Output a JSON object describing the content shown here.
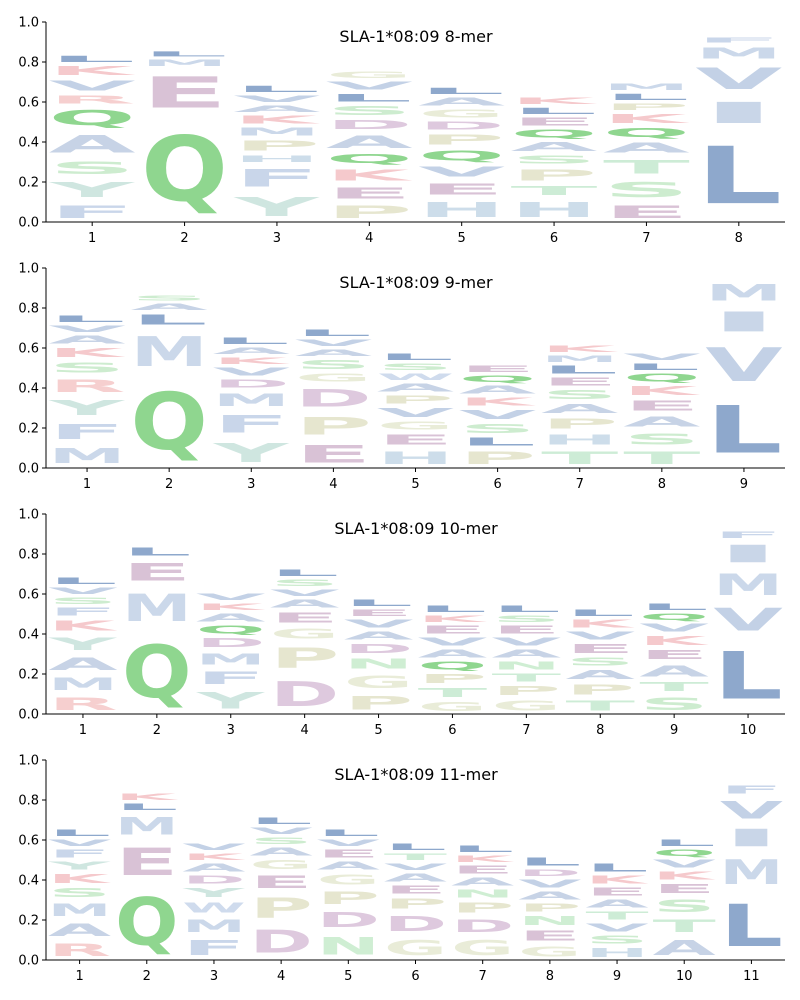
{
  "chart_data": [
    {
      "type": "sequence-logo",
      "title": "SLA-1*08:09 8-mer",
      "ylim": [
        0,
        1.0
      ],
      "yticks": [
        "0.0",
        "0.2",
        "0.4",
        "0.6",
        "0.8",
        "1.0"
      ],
      "positions": [
        "1",
        "2",
        "3",
        "4",
        "5",
        "6",
        "7",
        "8"
      ],
      "columns": [
        [
          [
            "F",
            0.1
          ],
          [
            "Y",
            0.12
          ],
          [
            "S",
            0.1
          ],
          [
            "A",
            0.14
          ],
          [
            "Q",
            0.12
          ],
          [
            "R",
            0.06
          ],
          [
            "V",
            0.08
          ],
          [
            "K",
            0.07
          ],
          [
            "L",
            0.05
          ]
        ],
        [
          [
            "Q",
            0.52
          ],
          [
            "E",
            0.25
          ],
          [
            "M",
            0.05
          ],
          [
            "L",
            0.04
          ]
        ],
        [
          [
            "Y",
            0.15
          ],
          [
            "F",
            0.14
          ],
          [
            "H",
            0.05
          ],
          [
            "P",
            0.08
          ],
          [
            "M",
            0.06
          ],
          [
            "K",
            0.06
          ],
          [
            "A",
            0.05
          ],
          [
            "V",
            0.05
          ],
          [
            "L",
            0.05
          ]
        ],
        [
          [
            "P",
            0.1
          ],
          [
            "E",
            0.09
          ],
          [
            "K",
            0.09
          ],
          [
            "Q",
            0.07
          ],
          [
            "A",
            0.1
          ],
          [
            "D",
            0.07
          ],
          [
            "S",
            0.07
          ],
          [
            "L",
            0.06
          ],
          [
            "V",
            0.06
          ],
          [
            "G",
            0.05
          ]
        ],
        [
          [
            "H",
            0.12
          ],
          [
            "E",
            0.09
          ],
          [
            "V",
            0.08
          ],
          [
            "Q",
            0.08
          ],
          [
            "P",
            0.08
          ],
          [
            "D",
            0.06
          ],
          [
            "G",
            0.06
          ],
          [
            "A",
            0.06
          ],
          [
            "L",
            0.05
          ]
        ],
        [
          [
            "H",
            0.12
          ],
          [
            "T",
            0.07
          ],
          [
            "P",
            0.09
          ],
          [
            "S",
            0.06
          ],
          [
            "A",
            0.07
          ],
          [
            "Q",
            0.06
          ],
          [
            "E",
            0.06
          ],
          [
            "L",
            0.05
          ],
          [
            "K",
            0.05
          ]
        ],
        [
          [
            "E",
            0.1
          ],
          [
            "S",
            0.12
          ],
          [
            "T",
            0.11
          ],
          [
            "A",
            0.08
          ],
          [
            "Q",
            0.07
          ],
          [
            "K",
            0.07
          ],
          [
            "P",
            0.05
          ],
          [
            "L",
            0.05
          ],
          [
            "M",
            0.05
          ]
        ],
        [
          [
            "L",
            0.46
          ],
          [
            "I",
            0.17
          ],
          [
            "V",
            0.17
          ],
          [
            "M",
            0.09
          ],
          [
            "F",
            0.04
          ]
        ]
      ]
    },
    {
      "type": "sequence-logo",
      "title": "SLA-1*08:09 9-mer",
      "ylim": [
        0,
        1.0
      ],
      "yticks": [
        "0.0",
        "0.2",
        "0.4",
        "0.6",
        "0.8",
        "1.0"
      ],
      "positions": [
        "1",
        "2",
        "3",
        "4",
        "5",
        "6",
        "7",
        "8",
        "9"
      ],
      "columns": [
        [
          [
            "M",
            0.12
          ],
          [
            "F",
            0.12
          ],
          [
            "Y",
            0.12
          ],
          [
            "R",
            0.1
          ],
          [
            "S",
            0.08
          ],
          [
            "K",
            0.07
          ],
          [
            "A",
            0.06
          ],
          [
            "V",
            0.05
          ],
          [
            "L",
            0.05
          ]
        ],
        [
          [
            "Q",
            0.46
          ],
          [
            "M",
            0.24
          ],
          [
            "L",
            0.08
          ],
          [
            "A",
            0.05
          ],
          [
            "S",
            0.04
          ]
        ],
        [
          [
            "Y",
            0.15
          ],
          [
            "F",
            0.14
          ],
          [
            "M",
            0.1
          ],
          [
            "D",
            0.06
          ],
          [
            "V",
            0.06
          ],
          [
            "K",
            0.05
          ],
          [
            "A",
            0.05
          ],
          [
            "L",
            0.05
          ]
        ],
        [
          [
            "E",
            0.14
          ],
          [
            "P",
            0.14
          ],
          [
            "D",
            0.14
          ],
          [
            "G",
            0.06
          ],
          [
            "S",
            0.07
          ],
          [
            "A",
            0.05
          ],
          [
            "V",
            0.05
          ],
          [
            "L",
            0.05
          ]
        ],
        [
          [
            "H",
            0.1
          ],
          [
            "E",
            0.08
          ],
          [
            "G",
            0.06
          ],
          [
            "V",
            0.07
          ],
          [
            "P",
            0.06
          ],
          [
            "A",
            0.06
          ],
          [
            "W",
            0.05
          ],
          [
            "S",
            0.05
          ],
          [
            "L",
            0.05
          ]
        ],
        [
          [
            "P",
            0.1
          ],
          [
            "L",
            0.06
          ],
          [
            "S",
            0.07
          ],
          [
            "V",
            0.07
          ],
          [
            "K",
            0.06
          ],
          [
            "A",
            0.06
          ],
          [
            "Q",
            0.05
          ],
          [
            "E",
            0.05
          ]
        ],
        [
          [
            "T",
            0.1
          ],
          [
            "H",
            0.08
          ],
          [
            "P",
            0.08
          ],
          [
            "A",
            0.07
          ],
          [
            "S",
            0.07
          ],
          [
            "E",
            0.06
          ],
          [
            "L",
            0.06
          ],
          [
            "M",
            0.05
          ],
          [
            "K",
            0.05
          ]
        ],
        [
          [
            "T",
            0.1
          ],
          [
            "S",
            0.09
          ],
          [
            "A",
            0.08
          ],
          [
            "E",
            0.08
          ],
          [
            "K",
            0.07
          ],
          [
            "Q",
            0.06
          ],
          [
            "L",
            0.05
          ],
          [
            "V",
            0.05
          ]
        ],
        [
          [
            "L",
            0.38
          ],
          [
            "V",
            0.27
          ],
          [
            "I",
            0.16
          ],
          [
            "M",
            0.13
          ]
        ]
      ]
    },
    {
      "type": "sequence-logo",
      "title": "SLA-1*08:09 10-mer",
      "ylim": [
        0,
        1.0
      ],
      "yticks": [
        "0.0",
        "0.2",
        "0.4",
        "0.6",
        "0.8",
        "1.0"
      ],
      "positions": [
        "1",
        "2",
        "3",
        "4",
        "5",
        "6",
        "7",
        "8",
        "9",
        "10"
      ],
      "columns": [
        [
          [
            "R",
            0.1
          ],
          [
            "M",
            0.1
          ],
          [
            "A",
            0.1
          ],
          [
            "Y",
            0.1
          ],
          [
            "K",
            0.08
          ],
          [
            "F",
            0.06
          ],
          [
            "S",
            0.05
          ],
          [
            "V",
            0.05
          ],
          [
            "L",
            0.05
          ]
        ],
        [
          [
            "Q",
            0.42
          ],
          [
            "M",
            0.22
          ],
          [
            "E",
            0.14
          ],
          [
            "L",
            0.06
          ]
        ],
        [
          [
            "Y",
            0.13
          ],
          [
            "F",
            0.1
          ],
          [
            "M",
            0.09
          ],
          [
            "D",
            0.07
          ],
          [
            "Q",
            0.06
          ],
          [
            "A",
            0.06
          ],
          [
            "K",
            0.05
          ],
          [
            "V",
            0.05
          ]
        ],
        [
          [
            "D",
            0.2
          ],
          [
            "P",
            0.16
          ],
          [
            "G",
            0.08
          ],
          [
            "E",
            0.08
          ],
          [
            "A",
            0.06
          ],
          [
            "V",
            0.05
          ],
          [
            "S",
            0.05
          ],
          [
            "L",
            0.05
          ]
        ],
        [
          [
            "P",
            0.11
          ],
          [
            "G",
            0.1
          ],
          [
            "N",
            0.08
          ],
          [
            "D",
            0.07
          ],
          [
            "A",
            0.06
          ],
          [
            "V",
            0.06
          ],
          [
            "E",
            0.05
          ],
          [
            "L",
            0.05
          ]
        ],
        [
          [
            "G",
            0.07
          ],
          [
            "T",
            0.07
          ],
          [
            "P",
            0.07
          ],
          [
            "Q",
            0.06
          ],
          [
            "A",
            0.06
          ],
          [
            "V",
            0.06
          ],
          [
            "E",
            0.06
          ],
          [
            "K",
            0.05
          ],
          [
            "L",
            0.05
          ]
        ],
        [
          [
            "G",
            0.08
          ],
          [
            "P",
            0.07
          ],
          [
            "T",
            0.06
          ],
          [
            "N",
            0.06
          ],
          [
            "A",
            0.06
          ],
          [
            "V",
            0.06
          ],
          [
            "E",
            0.06
          ],
          [
            "S",
            0.05
          ],
          [
            "L",
            0.05
          ]
        ],
        [
          [
            "T",
            0.08
          ],
          [
            "P",
            0.08
          ],
          [
            "A",
            0.07
          ],
          [
            "S",
            0.06
          ],
          [
            "E",
            0.07
          ],
          [
            "V",
            0.06
          ],
          [
            "K",
            0.06
          ],
          [
            "L",
            0.05
          ]
        ],
        [
          [
            "S",
            0.1
          ],
          [
            "T",
            0.07
          ],
          [
            "A",
            0.09
          ],
          [
            "E",
            0.07
          ],
          [
            "K",
            0.07
          ],
          [
            "V",
            0.06
          ],
          [
            "Q",
            0.05
          ],
          [
            "L",
            0.05
          ]
        ],
        [
          [
            "L",
            0.38
          ],
          [
            "V",
            0.18
          ],
          [
            "M",
            0.17
          ],
          [
            "I",
            0.14
          ],
          [
            "F",
            0.05
          ]
        ]
      ]
    },
    {
      "type": "sequence-logo",
      "title": "SLA-1*08:09 11-mer",
      "ylim": [
        0,
        1.0
      ],
      "yticks": [
        "0.0",
        "0.2",
        "0.4",
        "0.6",
        "0.8",
        "1.0"
      ],
      "positions": [
        "1",
        "2",
        "3",
        "4",
        "5",
        "6",
        "7",
        "8",
        "9",
        "10",
        "11"
      ],
      "columns": [
        [
          [
            "R",
            0.1
          ],
          [
            "A",
            0.1
          ],
          [
            "M",
            0.1
          ],
          [
            "S",
            0.07
          ],
          [
            "K",
            0.07
          ],
          [
            "Y",
            0.06
          ],
          [
            "F",
            0.06
          ],
          [
            "V",
            0.05
          ],
          [
            "L",
            0.05
          ]
        ],
        [
          [
            "Q",
            0.38
          ],
          [
            "E",
            0.22
          ],
          [
            "M",
            0.14
          ],
          [
            "L",
            0.05
          ],
          [
            "K",
            0.05
          ]
        ],
        [
          [
            "F",
            0.12
          ],
          [
            "M",
            0.1
          ],
          [
            "W",
            0.08
          ],
          [
            "Y",
            0.07
          ],
          [
            "D",
            0.06
          ],
          [
            "A",
            0.06
          ],
          [
            "K",
            0.05
          ],
          [
            "V",
            0.05
          ]
        ],
        [
          [
            "D",
            0.18
          ],
          [
            "P",
            0.16
          ],
          [
            "E",
            0.1
          ],
          [
            "G",
            0.07
          ],
          [
            "A",
            0.06
          ],
          [
            "S",
            0.05
          ],
          [
            "V",
            0.05
          ],
          [
            "L",
            0.05
          ]
        ],
        [
          [
            "N",
            0.14
          ],
          [
            "D",
            0.12
          ],
          [
            "P",
            0.1
          ],
          [
            "G",
            0.08
          ],
          [
            "A",
            0.06
          ],
          [
            "E",
            0.06
          ],
          [
            "V",
            0.05
          ],
          [
            "L",
            0.05
          ]
        ],
        [
          [
            "G",
            0.12
          ],
          [
            "D",
            0.12
          ],
          [
            "P",
            0.08
          ],
          [
            "E",
            0.06
          ],
          [
            "A",
            0.06
          ],
          [
            "V",
            0.05
          ],
          [
            "T",
            0.05
          ],
          [
            "L",
            0.05
          ]
        ],
        [
          [
            "G",
            0.12
          ],
          [
            "D",
            0.1
          ],
          [
            "P",
            0.08
          ],
          [
            "N",
            0.06
          ],
          [
            "A",
            0.06
          ],
          [
            "E",
            0.06
          ],
          [
            "K",
            0.05
          ],
          [
            "L",
            0.05
          ]
        ],
        [
          [
            "G",
            0.08
          ],
          [
            "E",
            0.08
          ],
          [
            "N",
            0.07
          ],
          [
            "P",
            0.06
          ],
          [
            "A",
            0.06
          ],
          [
            "V",
            0.06
          ],
          [
            "D",
            0.05
          ],
          [
            "L",
            0.06
          ]
        ],
        [
          [
            "H",
            0.07
          ],
          [
            "S",
            0.06
          ],
          [
            "V",
            0.06
          ],
          [
            "T",
            0.06
          ],
          [
            "A",
            0.06
          ],
          [
            "E",
            0.06
          ],
          [
            "K",
            0.06
          ],
          [
            "L",
            0.06
          ]
        ],
        [
          [
            "A",
            0.12
          ],
          [
            "T",
            0.1
          ],
          [
            "S",
            0.1
          ],
          [
            "E",
            0.07
          ],
          [
            "K",
            0.06
          ],
          [
            "V",
            0.06
          ],
          [
            "Q",
            0.05
          ],
          [
            "L",
            0.05
          ]
        ],
        [
          [
            "L",
            0.34
          ],
          [
            "M",
            0.2
          ],
          [
            "I",
            0.14
          ],
          [
            "V",
            0.14
          ],
          [
            "F",
            0.06
          ]
        ]
      ]
    }
  ]
}
